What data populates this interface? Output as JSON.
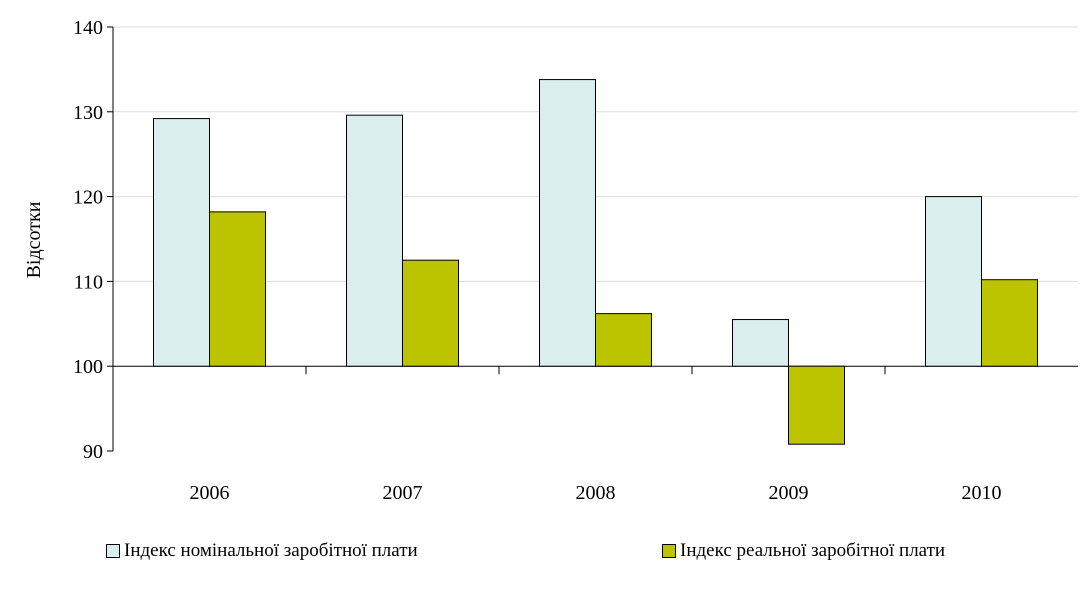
{
  "chart_data": {
    "type": "bar",
    "title": "",
    "xlabel": "",
    "ylabel": "Відсотки",
    "ylim": [
      90,
      140
    ],
    "yticks": [
      90,
      100,
      110,
      120,
      130,
      140
    ],
    "baseline": 100,
    "grid": true,
    "legend_position": "bottom",
    "categories": [
      "2006",
      "2007",
      "2008",
      "2009",
      "2010"
    ],
    "series": [
      {
        "name": "Індекс номінальної заробітної плати",
        "color": "#dbeeee",
        "values": [
          129.2,
          129.6,
          133.8,
          105.5,
          120.0
        ]
      },
      {
        "name": "Індекс реальної заробітної плати",
        "color": "#bcc400",
        "values": [
          118.2,
          112.5,
          106.2,
          90.8,
          110.2
        ]
      }
    ]
  }
}
